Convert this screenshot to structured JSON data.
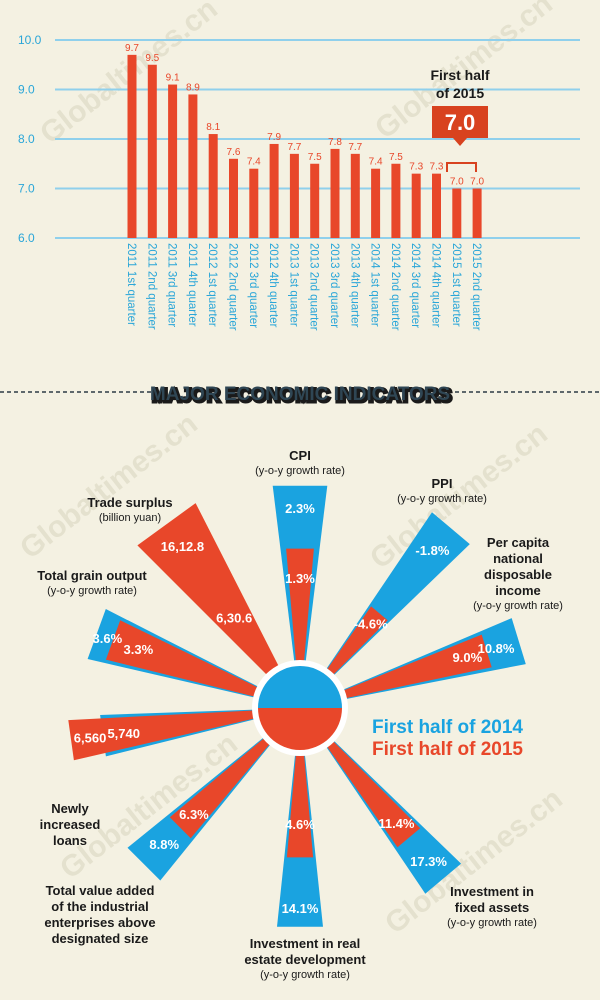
{
  "watermark": "Globaltimes.cn",
  "colors": {
    "blue": "#1aa3e0",
    "red": "#e8472a",
    "bg": "#f4f1e2"
  },
  "chart_data": [
    {
      "type": "bar",
      "ylim": [
        6.0,
        10.0
      ],
      "yticks": [
        "6.0",
        "7.0",
        "8.0",
        "9.0",
        "10.0"
      ],
      "grid": true,
      "categories": [
        "2011 1st quarter",
        "2011 2nd quarter",
        "2011 3rd quarter",
        "2011 4th quarter",
        "2012 1st quarter",
        "2012 2nd quarter",
        "2012 3rd quarter",
        "2012 4th quarter",
        "2013 1st quarter",
        "2013 2nd quarter",
        "2013 3rd quarter",
        "2013 4th quarter",
        "2014 1st quarter",
        "2014 2nd quarter",
        "2014 3rd quarter",
        "2014 4th quarter",
        "2015 1st quarter",
        "2015 2nd quarter"
      ],
      "values": [
        9.7,
        9.5,
        9.1,
        8.9,
        8.1,
        7.6,
        7.4,
        7.9,
        7.7,
        7.5,
        7.8,
        7.7,
        7.4,
        7.5,
        7.3,
        7.3,
        7.0,
        7.0
      ],
      "value_labels": [
        "9.7",
        "9.5",
        "9.1",
        "8.9",
        "8.1",
        "7.6",
        "7.4",
        "7.9",
        "7.7",
        "7.5",
        "7.8",
        "7.7",
        "7.4",
        "7.5",
        "7.3",
        "7.3",
        "7.0",
        "7.0"
      ],
      "callout": {
        "line1": "First half",
        "line2": "of 2015",
        "value": "7.0"
      }
    },
    {
      "type": "radial-bar",
      "title": "MAJOR ECONOMIC INDICATORS",
      "legend": [
        {
          "name": "First half of 2014",
          "color": "#1aa3e0"
        },
        {
          "name": "First half of 2015",
          "color": "#e8472a"
        }
      ],
      "indicators": [
        {
          "id": "cpi",
          "title": "CPI",
          "subtitle": "(y-o-y growth rate)",
          "value_2014": "2.3%",
          "value_2015": "1.3%"
        },
        {
          "id": "ppi",
          "title": "PPI",
          "subtitle": "(y-o-y growth rate)",
          "value_2014": "-1.8%",
          "value_2015": "-4.6%"
        },
        {
          "id": "income",
          "title_lines": [
            "Per capita",
            "national",
            "disposable",
            "income"
          ],
          "subtitle": "(y-o-y growth rate)",
          "value_2014": "10.8%",
          "value_2015": "9.0%"
        },
        {
          "id": "fixed",
          "title_lines": [
            "Investment in",
            "fixed assets"
          ],
          "subtitle": "(y-o-y growth rate)",
          "value_2014": "17.3%",
          "value_2015": "11.4%"
        },
        {
          "id": "realestate",
          "title_lines": [
            "Investment in real",
            "estate development"
          ],
          "subtitle": "(y-o-y growth rate)",
          "value_2014": "14.1%",
          "value_2015": "4.6%"
        },
        {
          "id": "industrial",
          "title_lines": [
            "Total value added",
            "of the industrial",
            "enterprises above",
            "designated size"
          ],
          "subtitle": "",
          "value_2014": "8.8%",
          "value_2015": "6.3%"
        },
        {
          "id": "loans",
          "title_lines": [
            "Newly",
            "increased",
            "loans"
          ],
          "subtitle": "",
          "value_2014": "5,740",
          "value_2015": "6,560"
        },
        {
          "id": "grain",
          "title": "Total grain output",
          "subtitle": "(y-o-y growth rate)",
          "value_2014": "3.6%",
          "value_2015": "3.3%"
        },
        {
          "id": "trade",
          "title": "Trade surplus",
          "subtitle": "(billion yuan)",
          "value_2014": "6,30.6",
          "value_2015": "16,12.8"
        }
      ]
    }
  ]
}
